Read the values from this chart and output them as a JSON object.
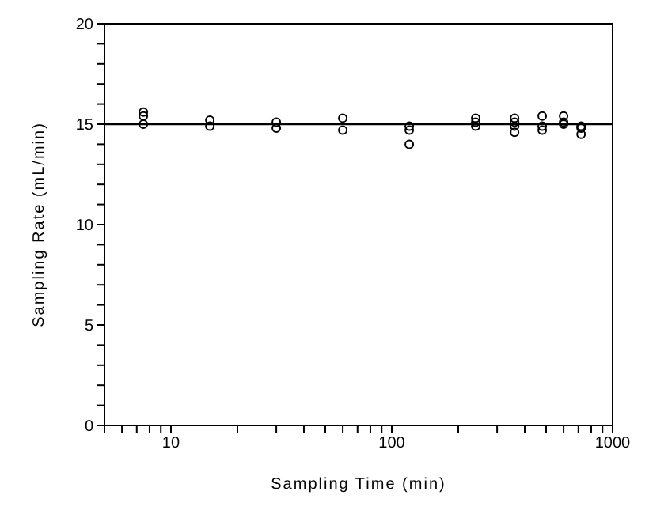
{
  "chart_data": {
    "type": "scatter",
    "xlabel": "Sampling Time (min)",
    "ylabel": "Sampling Rate (mL/min)",
    "log": "x",
    "xlim": [
      5,
      1000
    ],
    "ylim": [
      0,
      20
    ],
    "xticks": [
      {
        "value": 5,
        "label": null
      },
      {
        "value": 6,
        "label": null
      },
      {
        "value": 7,
        "label": null
      },
      {
        "value": 8,
        "label": null
      },
      {
        "value": 9,
        "label": null
      },
      10,
      {
        "value": 20,
        "label": null
      },
      {
        "value": 30,
        "label": null
      },
      {
        "value": 40,
        "label": null
      },
      {
        "value": 50,
        "label": null
      },
      {
        "value": 60,
        "label": null
      },
      {
        "value": 70,
        "label": null
      },
      {
        "value": 80,
        "label": null
      },
      {
        "value": 90,
        "label": null
      },
      100,
      {
        "value": 200,
        "label": null
      },
      {
        "value": 300,
        "label": null
      },
      {
        "value": 400,
        "label": null
      },
      {
        "value": 500,
        "label": null
      },
      {
        "value": 600,
        "label": null
      },
      {
        "value": 700,
        "label": null
      },
      {
        "value": 800,
        "label": null
      },
      {
        "value": 900,
        "label": null
      },
      1000
    ],
    "yticks": [
      0,
      {
        "value": 1,
        "label": null
      },
      {
        "value": 2,
        "label": null
      },
      {
        "value": 3,
        "label": null
      },
      {
        "value": 4,
        "label": null
      },
      5,
      {
        "value": 6,
        "label": null
      },
      {
        "value": 7,
        "label": null
      },
      {
        "value": 8,
        "label": null
      },
      {
        "value": 9,
        "label": null
      },
      10,
      {
        "value": 11,
        "label": null
      },
      {
        "value": 12,
        "label": null
      },
      {
        "value": 13,
        "label": null
      },
      {
        "value": 14,
        "label": null
      },
      15,
      {
        "value": 16,
        "label": null
      },
      {
        "value": 17,
        "label": null
      },
      {
        "value": 18,
        "label": null
      },
      {
        "value": 19,
        "label": null
      },
      20
    ],
    "marker": "circle",
    "ref_lines": [
      {
        "axis": "y",
        "value": 15,
        "color": "#000000"
      }
    ],
    "series": [
      {
        "color": "#000000",
        "x": [
          7.5,
          7.5,
          7.5,
          15,
          15,
          30,
          30,
          60,
          60,
          120,
          120,
          120,
          240,
          240,
          240,
          360,
          360,
          360,
          360,
          480,
          480,
          480,
          600,
          600,
          600,
          720,
          720,
          720
        ],
        "values": [
          15.6,
          15.4,
          15.0,
          15.2,
          14.9,
          15.1,
          14.8,
          15.3,
          14.7,
          14.9,
          14.7,
          14.0,
          15.3,
          15.1,
          14.9,
          15.3,
          15.1,
          14.9,
          14.6,
          15.4,
          14.9,
          14.7,
          15.4,
          15.1,
          15.0,
          14.9,
          14.8,
          14.5
        ]
      }
    ]
  }
}
